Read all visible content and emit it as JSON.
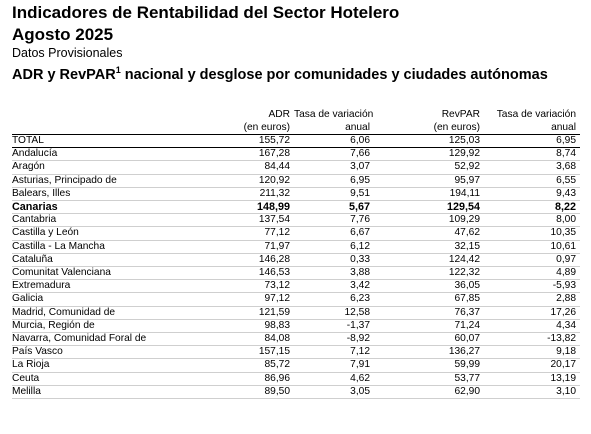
{
  "report": {
    "title_line1": "Indicadores de Rentabilidad del Sector Hotelero",
    "title_line2": "Agosto 2025",
    "subtitle": "Datos Provisionales",
    "section_title": "ADR y RevPAR",
    "section_superscript": "1",
    "section_title_rest": " nacional y desglose por comunidades y ciudades autónomas"
  },
  "table": {
    "headers": [
      [
        "ADR",
        "(en euros)"
      ],
      [
        "Tasa de variación",
        "anual"
      ],
      [
        "RevPAR",
        "(en euros)"
      ],
      [
        "Tasa de variación",
        "anual"
      ]
    ],
    "rows": [
      {
        "name": "TOTAL",
        "adr": "155,72",
        "adr_var": "6,06",
        "revpar": "125,03",
        "revpar_var": "6,95",
        "bold": false,
        "total": true
      },
      {
        "name": "Andalucía",
        "adr": "167,28",
        "adr_var": "7,66",
        "revpar": "129,92",
        "revpar_var": "8,74"
      },
      {
        "name": "Aragón",
        "adr": "84,44",
        "adr_var": "3,07",
        "revpar": "52,92",
        "revpar_var": "3,68"
      },
      {
        "name": "Asturias, Principado de",
        "adr": "120,92",
        "adr_var": "6,95",
        "revpar": "95,97",
        "revpar_var": "6,55"
      },
      {
        "name": "Balears, Illes",
        "adr": "211,32",
        "adr_var": "9,51",
        "revpar": "194,11",
        "revpar_var": "9,43"
      },
      {
        "name": "Canarias",
        "adr": "148,99",
        "adr_var": "5,67",
        "revpar": "129,54",
        "revpar_var": "8,22",
        "bold": true
      },
      {
        "name": "Cantabria",
        "adr": "137,54",
        "adr_var": "7,76",
        "revpar": "109,29",
        "revpar_var": "8,00"
      },
      {
        "name": "Castilla y León",
        "adr": "77,12",
        "adr_var": "6,67",
        "revpar": "47,62",
        "revpar_var": "10,35"
      },
      {
        "name": "Castilla - La Mancha",
        "adr": "71,97",
        "adr_var": "6,12",
        "revpar": "32,15",
        "revpar_var": "10,61"
      },
      {
        "name": "Cataluña",
        "adr": "146,28",
        "adr_var": "0,33",
        "revpar": "124,42",
        "revpar_var": "0,97"
      },
      {
        "name": "Comunitat Valenciana",
        "adr": "146,53",
        "adr_var": "3,88",
        "revpar": "122,32",
        "revpar_var": "4,89"
      },
      {
        "name": "Extremadura",
        "adr": "73,12",
        "adr_var": "3,42",
        "revpar": "36,05",
        "revpar_var": "-5,93"
      },
      {
        "name": "Galicia",
        "adr": "97,12",
        "adr_var": "6,23",
        "revpar": "67,85",
        "revpar_var": "2,88"
      },
      {
        "name": "Madrid, Comunidad de",
        "adr": "121,59",
        "adr_var": "12,58",
        "revpar": "76,37",
        "revpar_var": "17,26"
      },
      {
        "name": "Murcia, Región de",
        "adr": "98,83",
        "adr_var": "-1,37",
        "revpar": "71,24",
        "revpar_var": "4,34"
      },
      {
        "name": "Navarra, Comunidad Foral de",
        "adr": "84,08",
        "adr_var": "-8,92",
        "revpar": "60,07",
        "revpar_var": "-13,82"
      },
      {
        "name": "País Vasco",
        "adr": "157,15",
        "adr_var": "7,12",
        "revpar": "136,27",
        "revpar_var": "9,18"
      },
      {
        "name": "La Rioja",
        "adr": "85,72",
        "adr_var": "7,91",
        "revpar": "59,99",
        "revpar_var": "20,17"
      },
      {
        "name": "Ceuta",
        "adr": "86,96",
        "adr_var": "4,62",
        "revpar": "53,77",
        "revpar_var": "13,19"
      },
      {
        "name": "Melilla",
        "adr": "89,50",
        "adr_var": "3,05",
        "revpar": "62,90",
        "revpar_var": "3,10"
      }
    ]
  }
}
